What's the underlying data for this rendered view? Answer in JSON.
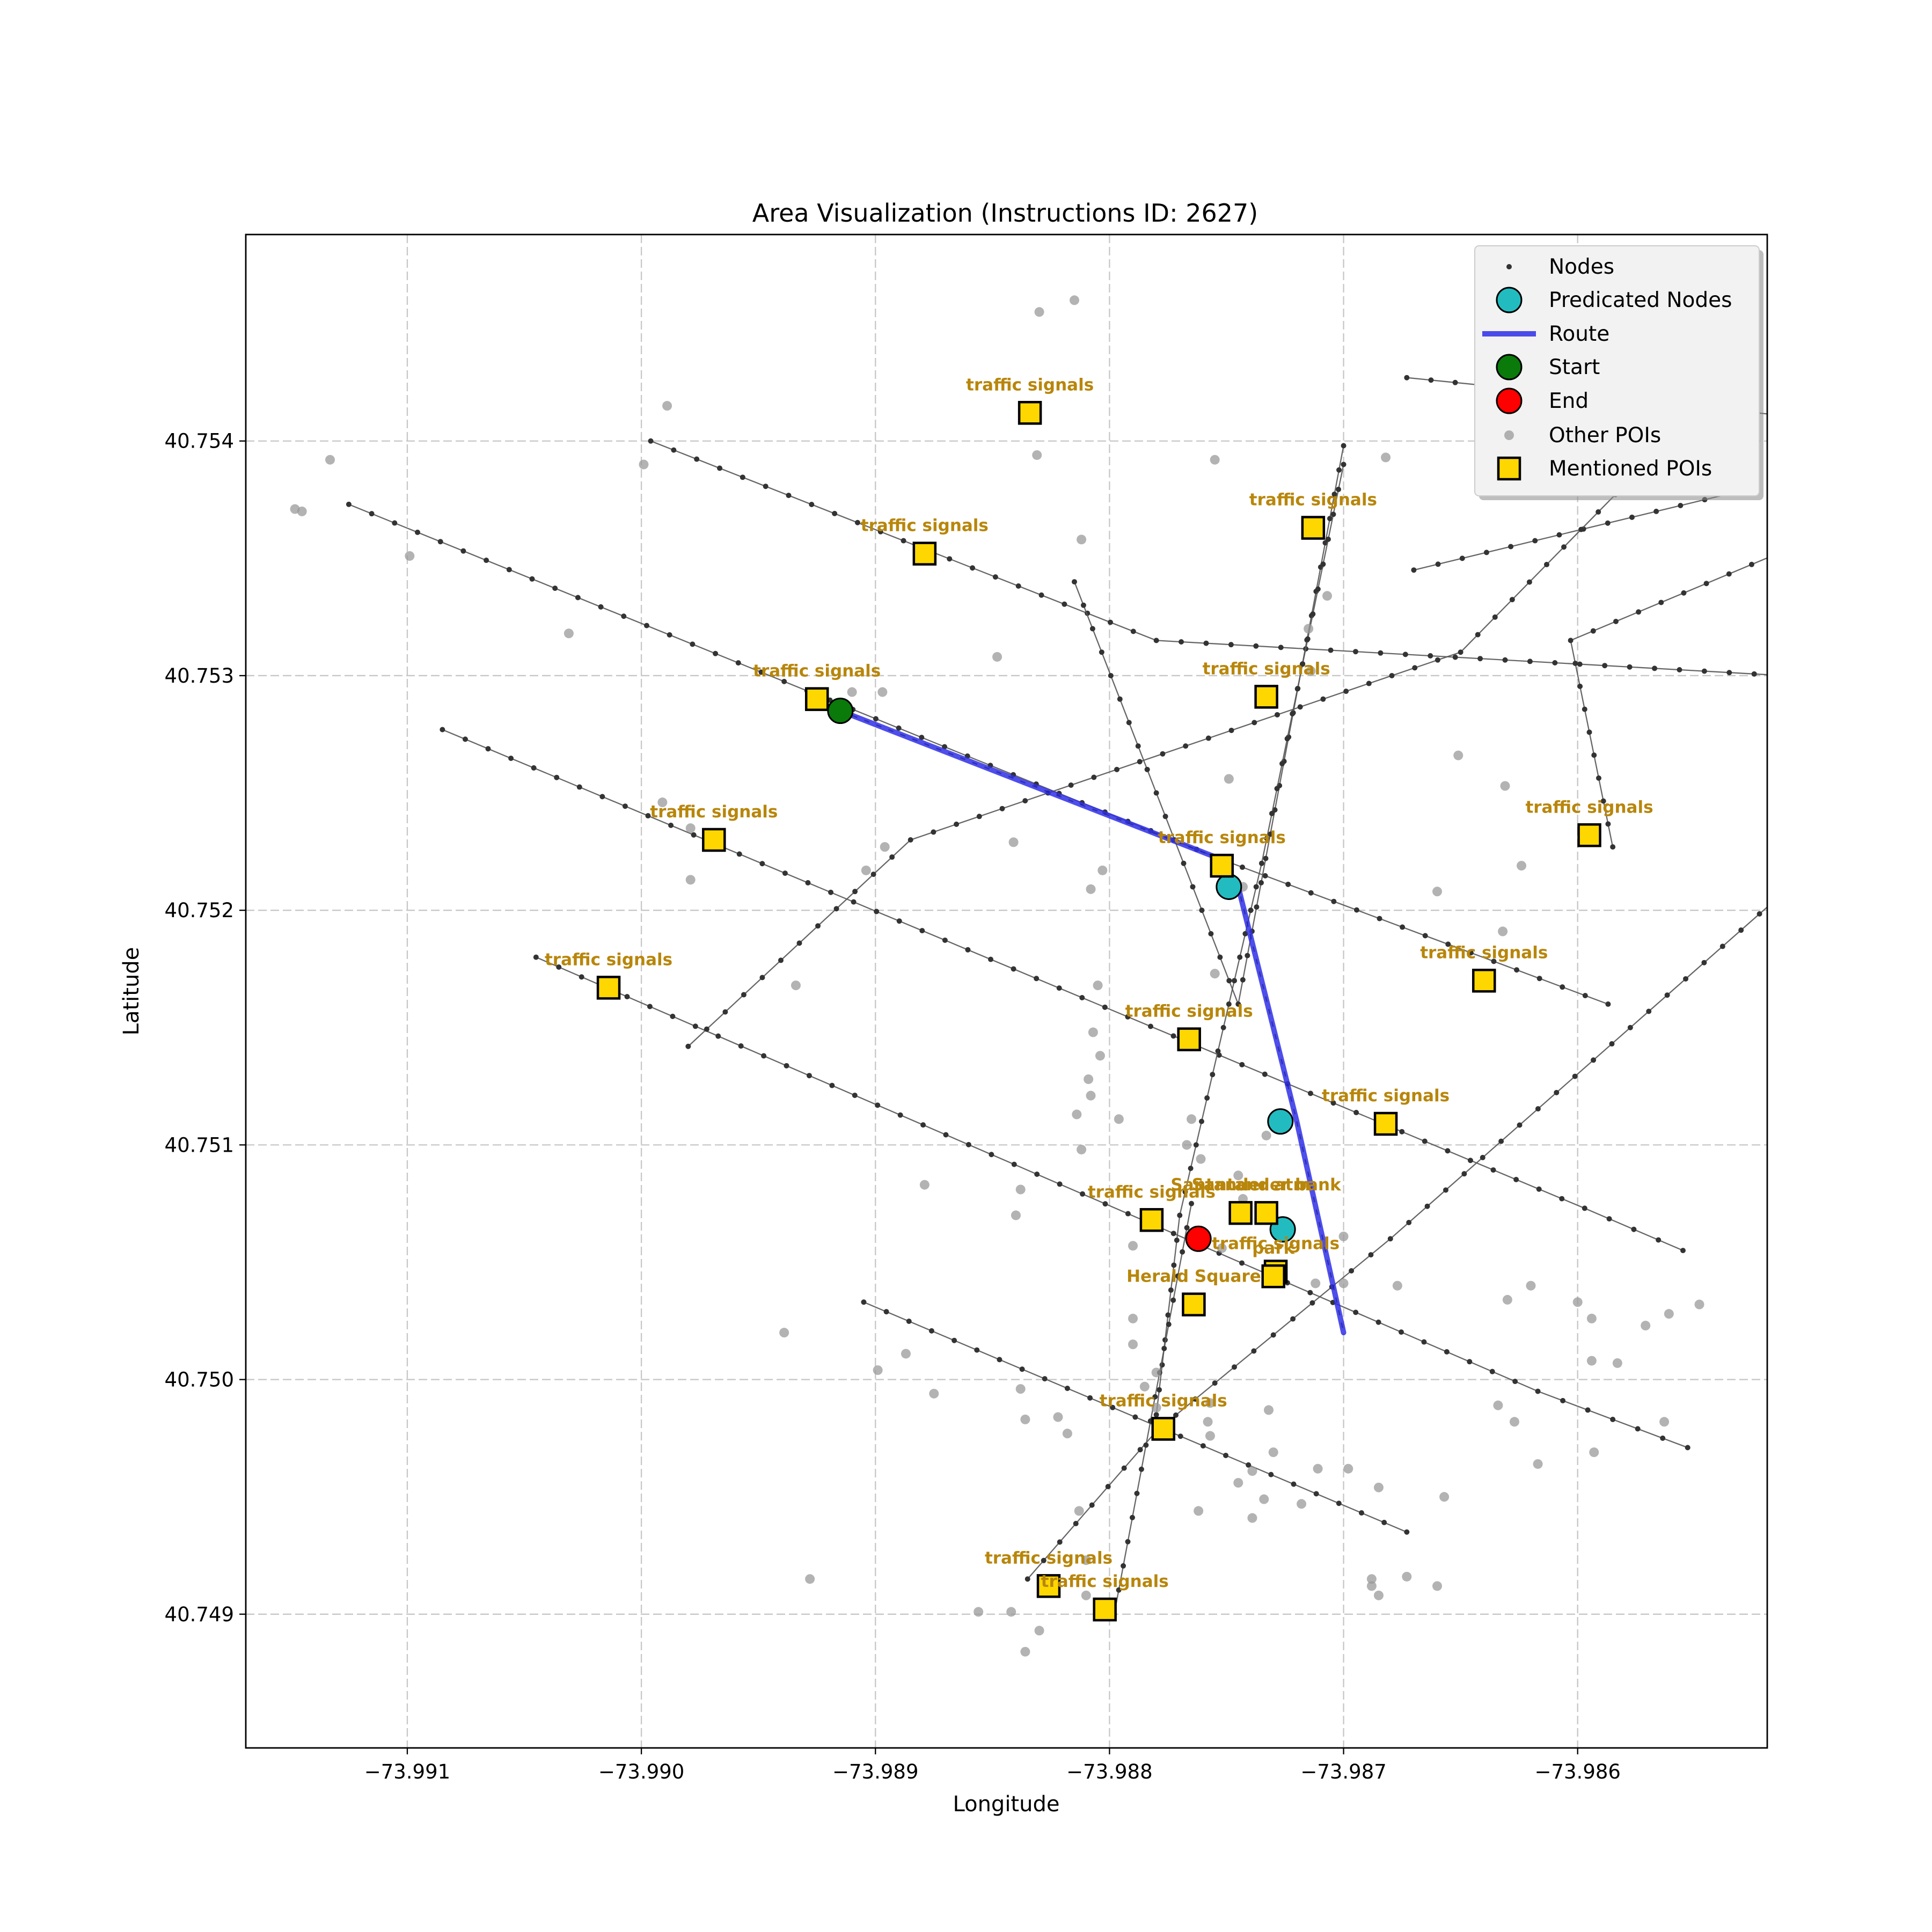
{
  "chart_data": {
    "type": "scatter",
    "title": "Area Visualization (Instructions ID: 2627)",
    "xlabel": "Longitude",
    "ylabel": "Latitude",
    "xlim": [
      -73.99169,
      -73.98519
    ],
    "ylim": [
      40.74843,
      40.75488
    ],
    "xticks": [
      -73.991,
      -73.99,
      -73.989,
      -73.988,
      -73.987,
      -73.986
    ],
    "xtick_labels": [
      "−73.991",
      "−73.990",
      "−73.989",
      "−73.988",
      "−73.987",
      "−73.986"
    ],
    "yticks": [
      40.749,
      40.75,
      40.751,
      40.752,
      40.753,
      40.754
    ],
    "ytick_labels": [
      "40.749",
      "40.750",
      "40.751",
      "40.752",
      "40.753",
      "40.754"
    ],
    "grid": true,
    "legend_placement": "upper right",
    "colors": {
      "nodes": "#333333",
      "predicated_nodes": "#22bcc0",
      "route": "#2f2fe8",
      "start": "#0a7a0a",
      "end": "#ff0000",
      "other_pois": "#999999",
      "mentioned_pois": "#ffd700",
      "poi_label": "#b8860b"
    },
    "legend": [
      {
        "label": "Nodes",
        "marker": "small-dot"
      },
      {
        "label": "Predicated Nodes",
        "marker": "cyan-circle"
      },
      {
        "label": "Route",
        "marker": "blue-line"
      },
      {
        "label": "Start",
        "marker": "green-circle"
      },
      {
        "label": "End",
        "marker": "red-circle"
      },
      {
        "label": "Other POIs",
        "marker": "gray-dot"
      },
      {
        "label": "Mentioned POIs",
        "marker": "gold-square"
      }
    ],
    "streets": [
      [
        [
          -73.99125,
          40.75373
        ],
        [
          -73.98753,
          40.75222
        ],
        [
          -73.98587,
          40.7516
        ]
      ],
      [
        [
          -73.98996,
          40.754
        ],
        [
          -73.9878,
          40.75315
        ],
        [
          -73.98333,
          40.7529
        ]
      ],
      [
        [
          -73.984,
          40.754
        ],
        [
          -73.98603,
          40.75315
        ],
        [
          -73.98585,
          40.75227
        ]
      ],
      [
        [
          -73.99085,
          40.75277
        ],
        [
          -73.98597,
          40.75073
        ],
        [
          -73.98555,
          40.75055
        ]
      ],
      [
        [
          -73.99045,
          40.7518
        ],
        [
          -73.98617,
          40.74995
        ],
        [
          -73.98553,
          40.74971
        ]
      ],
      [
        [
          -73.98905,
          40.75033
        ],
        [
          -73.98673,
          40.74935
        ]
      ],
      [
        [
          -73.98673,
          40.75427
        ],
        [
          -73.98404,
          40.754
        ]
      ],
      [
        [
          -73.98525,
          40.7538
        ],
        [
          -73.9867,
          40.75345
        ]
      ],
      [
        [
          -73.9898,
          40.75142
        ],
        [
          -73.98885,
          40.7523
        ],
        [
          -73.9865,
          40.7531
        ],
        [
          -73.98525,
          40.75437
        ]
      ],
      [
        [
          -73.98815,
          40.7534
        ],
        [
          -73.98745,
          40.7516
        ],
        [
          -73.987,
          40.75398
        ]
      ],
      [
        [
          -73.98835,
          40.74915
        ],
        [
          -73.9878,
          40.74978
        ],
        [
          -73.9868,
          40.7506
        ],
        [
          -73.98475,
          40.7524
        ]
      ],
      [
        [
          -73.9878,
          40.74985
        ],
        [
          -73.9877,
          40.7507
        ],
        [
          -73.98735,
          40.7522
        ],
        [
          -73.987,
          40.7539
        ]
      ],
      [
        [
          -73.98798,
          40.749
        ],
        [
          -73.98765,
          40.75075
        ]
      ]
    ],
    "route": [
      [
        -73.98915,
        40.75285
      ],
      [
        -73.98753,
        40.75222
      ],
      [
        -73.98745,
        40.7521
      ],
      [
        -73.9872,
        40.7511
      ],
      [
        -73.987,
        40.7502
      ]
    ],
    "start": [
      -73.98915,
      40.75285
    ],
    "end": [
      -73.98762,
      40.7506
    ],
    "predicated_nodes": [
      [
        -73.98749,
        40.7521
      ],
      [
        -73.98727,
        40.7511
      ],
      [
        -73.98726,
        40.75064
      ]
    ],
    "mentioned_pois": [
      {
        "label": "traffic signals",
        "x": -73.98834,
        "y": 40.75412
      },
      {
        "label": "traffic signals",
        "x": -73.98879,
        "y": 40.75352
      },
      {
        "label": "traffic signals",
        "x": -73.98713,
        "y": 40.75363
      },
      {
        "label": "traffic signals",
        "x": -73.98925,
        "y": 40.7529
      },
      {
        "label": "traffic signals",
        "x": -73.98733,
        "y": 40.75291
      },
      {
        "label": "traffic signals",
        "x": -73.98969,
        "y": 40.7523
      },
      {
        "label": "traffic signals",
        "x": -73.98595,
        "y": 40.75232
      },
      {
        "label": "traffic signals",
        "x": -73.98752,
        "y": 40.75219
      },
      {
        "label": "traffic signals",
        "x": -73.99014,
        "y": 40.75167
      },
      {
        "label": "traffic signals",
        "x": -73.9864,
        "y": 40.7517
      },
      {
        "label": "traffic signals",
        "x": -73.98766,
        "y": 40.75145
      },
      {
        "label": "traffic signals",
        "x": -73.98682,
        "y": 40.75109
      },
      {
        "label": "traffic signals",
        "x": -73.98782,
        "y": 40.75068
      },
      {
        "label": "Santander atm",
        "x": -73.98744,
        "y": 40.75071
      },
      {
        "label": "Santander bank",
        "x": -73.98733,
        "y": 40.75071
      },
      {
        "label": "traffic signals",
        "x": -73.98729,
        "y": 40.75046
      },
      {
        "label": "Herald Square",
        "x": -73.98764,
        "y": 40.75032
      },
      {
        "label": "park",
        "x": -73.9873,
        "y": 40.75044
      },
      {
        "label": "traffic signals",
        "x": -73.98777,
        "y": 40.74979
      },
      {
        "label": "traffic signals",
        "x": -73.98826,
        "y": 40.74912
      },
      {
        "label": "traffic signals",
        "x": -73.98802,
        "y": 40.74902
      }
    ],
    "other_pois": [
      [
        -73.9883,
        40.75455
      ],
      [
        -73.98815,
        40.7546
      ],
      [
        -73.98989,
        40.75415
      ],
      [
        -73.99133,
        40.75392
      ],
      [
        -73.99148,
        40.75371
      ],
      [
        -73.99145,
        40.7537
      ],
      [
        -73.98999,
        40.7539
      ],
      [
        -73.99099,
        40.75351
      ],
      [
        -73.98812,
        40.75358
      ],
      [
        -73.98831,
        40.75394
      ],
      [
        -73.98755,
        40.75392
      ],
      [
        -73.98682,
        40.75393
      ],
      [
        -73.99031,
        40.75318
      ],
      [
        -73.98714,
        40.75302
      ],
      [
        -73.98848,
        40.75308
      ],
      [
        -73.98707,
        40.75334
      ],
      [
        -73.98715,
        40.7532
      ],
      [
        -73.9891,
        40.75293
      ],
      [
        -73.98897,
        40.75293
      ],
      [
        -73.98749,
        40.75256
      ],
      [
        -73.98651,
        40.75266
      ],
      [
        -73.98631,
        40.75253
      ],
      [
        -73.98991,
        40.75246
      ],
      [
        -73.98979,
        40.75235
      ],
      [
        -73.98841,
        40.75229
      ],
      [
        -73.98896,
        40.75227
      ],
      [
        -73.98979,
        40.75213
      ],
      [
        -73.98904,
        40.75217
      ],
      [
        -73.98803,
        40.75217
      ],
      [
        -73.98808,
        40.75209
      ],
      [
        -73.98743,
        40.7521
      ],
      [
        -73.98624,
        40.75219
      ],
      [
        -73.9866,
        40.75208
      ],
      [
        -73.98632,
        40.75191
      ],
      [
        -73.98755,
        40.75173
      ],
      [
        -73.98805,
        40.75168
      ],
      [
        -73.98934,
        40.75168
      ],
      [
        -73.98807,
        40.75148
      ],
      [
        -73.98804,
        40.75138
      ],
      [
        -73.98809,
        40.75128
      ],
      [
        -73.98808,
        40.75121
      ],
      [
        -73.98796,
        40.75111
      ],
      [
        -73.98814,
        40.75113
      ],
      [
        -73.98765,
        40.75111
      ],
      [
        -73.98767,
        40.751
      ],
      [
        -73.98812,
        40.75098
      ],
      [
        -73.98733,
        40.75104
      ],
      [
        -73.98838,
        40.75081
      ],
      [
        -73.98761,
        40.75094
      ],
      [
        -73.98745,
        40.75087
      ],
      [
        -73.9884,
        40.7507
      ],
      [
        -73.98743,
        40.75077
      ],
      [
        -73.98752,
        40.75056
      ],
      [
        -73.9879,
        40.75057
      ],
      [
        -73.98879,
        40.75083
      ],
      [
        -73.987,
        40.75061
      ],
      [
        -73.987,
        40.75041
      ],
      [
        -73.98712,
        40.75041
      ],
      [
        -73.9862,
        40.7504
      ],
      [
        -73.98677,
        40.7504
      ],
      [
        -73.98594,
        40.75026
      ],
      [
        -73.9863,
        40.75034
      ],
      [
        -73.986,
        40.75033
      ],
      [
        -73.98561,
        40.75028
      ],
      [
        -73.98594,
        40.75008
      ],
      [
        -73.98583,
        40.75007
      ],
      [
        -73.98571,
        40.75023
      ],
      [
        -73.98563,
        40.74982
      ],
      [
        -73.98627,
        40.74982
      ],
      [
        -73.98634,
        40.74989
      ],
      [
        -73.98617,
        40.74964
      ],
      [
        -73.98593,
        40.74969
      ],
      [
        -73.98548,
        40.75032
      ],
      [
        -73.98939,
        40.7502
      ],
      [
        -73.98887,
        40.75011
      ],
      [
        -73.98899,
        40.75004
      ],
      [
        -73.98875,
        40.74994
      ],
      [
        -73.98785,
        40.74997
      ],
      [
        -73.9878,
        40.75003
      ],
      [
        -73.98758,
        40.74982
      ],
      [
        -73.9878,
        40.74988
      ],
      [
        -73.98757,
        40.7499
      ],
      [
        -73.98757,
        40.74976
      ],
      [
        -73.98732,
        40.74987
      ],
      [
        -73.9873,
        40.74969
      ],
      [
        -73.98836,
        40.74983
      ],
      [
        -73.98838,
        40.74996
      ],
      [
        -73.98822,
        40.74984
      ],
      [
        -73.98818,
        40.74977
      ],
      [
        -73.98739,
        40.74961
      ],
      [
        -73.98745,
        40.74956
      ],
      [
        -73.98711,
        40.74962
      ],
      [
        -73.98698,
        40.74962
      ],
      [
        -73.98685,
        40.74954
      ],
      [
        -73.98657,
        40.7495
      ],
      [
        -73.98718,
        40.74947
      ],
      [
        -73.98734,
        40.74949
      ],
      [
        -73.98813,
        40.74944
      ],
      [
        -73.98762,
        40.74944
      ],
      [
        -73.98739,
        40.74941
      ],
      [
        -73.9881,
        40.74923
      ],
      [
        -73.9881,
        40.74908
      ],
      [
        -73.98842,
        40.74901
      ],
      [
        -73.9883,
        40.74893
      ],
      [
        -73.98856,
        40.74901
      ],
      [
        -73.98836,
        40.74884
      ],
      [
        -73.98928,
        40.74915
      ],
      [
        -73.98688,
        40.74915
      ],
      [
        -73.98685,
        40.74908
      ],
      [
        -73.98673,
        40.74916
      ],
      [
        -73.9866,
        40.74912
      ],
      [
        -73.98688,
        40.74912
      ],
      [
        -73.9879,
        40.75015
      ],
      [
        -73.9879,
        40.75026
      ]
    ]
  }
}
